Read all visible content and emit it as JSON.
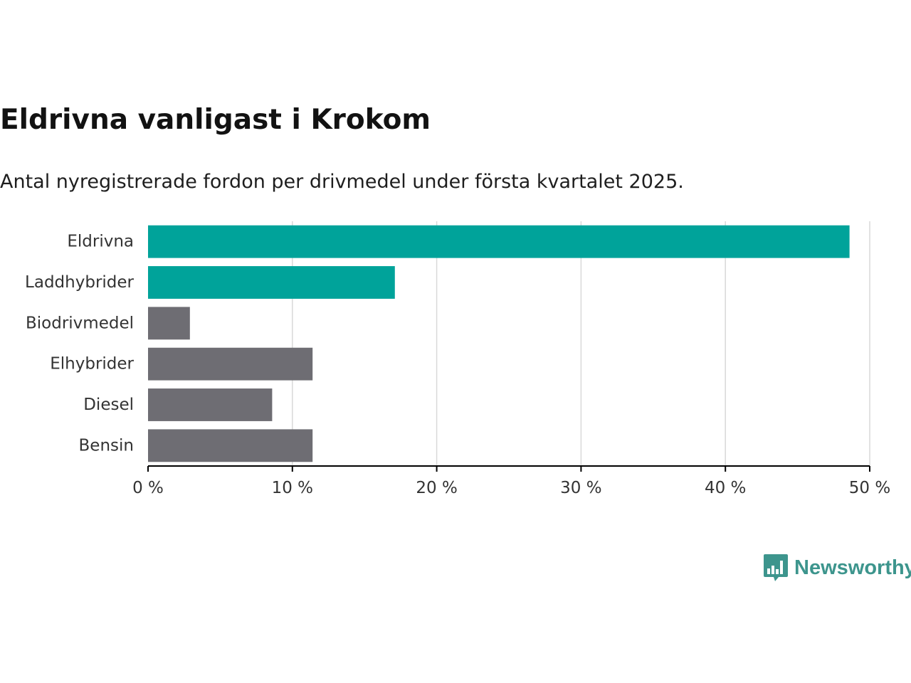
{
  "title": "Eldrivna vanligast i Krokom",
  "subtitle": "Antal nyregistrerade fordon per drivmedel under första kvartalet 2025.",
  "logo": {
    "text": "Newsworthy",
    "icon": "bar-chart-speech-bubble-icon",
    "color": "#3d958d"
  },
  "colors": {
    "highlight": "#00a39a",
    "other": "#6e6d73",
    "grid": "#d9d9d9",
    "axis": "#000000",
    "label": "#333333"
  },
  "chart_data": {
    "type": "bar",
    "orientation": "horizontal",
    "categories": [
      "Eldrivna",
      "Laddhybrider",
      "Biodrivmedel",
      "Elhybrider",
      "Diesel",
      "Bensin"
    ],
    "values": [
      48.6,
      17.1,
      2.9,
      11.4,
      8.6,
      11.4
    ],
    "highlighted": [
      true,
      true,
      false,
      false,
      false,
      false
    ],
    "xlim": [
      0,
      50
    ],
    "xticks": [
      0,
      10,
      20,
      30,
      40,
      50
    ],
    "xtick_labels": [
      "0 %",
      "10 %",
      "20 %",
      "30 %",
      "40 %",
      "50 %"
    ],
    "grid": true,
    "unit": "%"
  }
}
